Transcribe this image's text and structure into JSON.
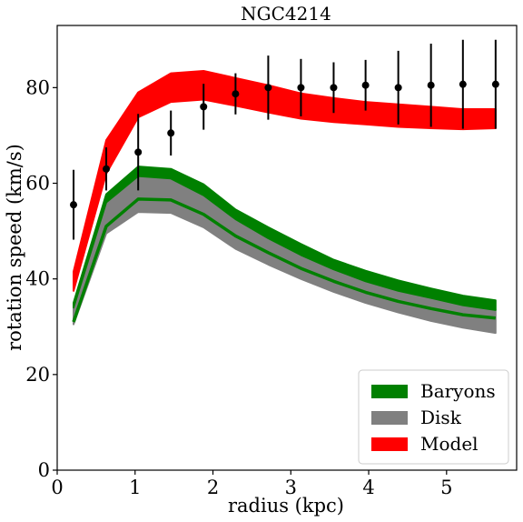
{
  "chart_data": {
    "type": "line",
    "title": "NGC4214",
    "xlabel": "radius (kpc)",
    "ylabel": "rotation speed (km/s)",
    "xlim": [
      0,
      5.9
    ],
    "ylim": [
      0,
      93
    ],
    "xticks": [
      0,
      1,
      2,
      3,
      4,
      5
    ],
    "yticks": [
      0,
      20,
      40,
      60,
      80
    ],
    "grid": false,
    "legend_position": "bottom-right",
    "x": [
      0.21,
      0.63,
      1.04,
      1.46,
      1.88,
      2.29,
      2.71,
      3.13,
      3.55,
      3.96,
      4.38,
      4.8,
      5.21,
      5.63
    ],
    "bands": [
      {
        "name": "Baryons",
        "color": "#008000",
        "lower": [
          34.0,
          56.0,
          61.5,
          61.0,
          57.5,
          52.5,
          48.5,
          45.0,
          42.0,
          39.5,
          37.5,
          36.0,
          34.5,
          33.5
        ],
        "upper": [
          35.0,
          57.7,
          63.5,
          63.0,
          59.8,
          54.5,
          50.8,
          47.3,
          44.0,
          41.7,
          39.7,
          38.0,
          36.5,
          35.5
        ]
      },
      {
        "name": "Disk",
        "color": "#808080",
        "lower": [
          30.5,
          49.5,
          54.0,
          53.8,
          50.8,
          46.3,
          43.0,
          40.0,
          37.3,
          35.0,
          33.0,
          31.2,
          29.8,
          28.7
        ],
        "upper": [
          34.5,
          56.0,
          61.5,
          61.0,
          57.5,
          52.5,
          48.5,
          45.0,
          42.0,
          39.5,
          37.5,
          36.0,
          34.5,
          33.5
        ]
      },
      {
        "name": "Model",
        "color": "#ff0000",
        "lower": [
          37.5,
          62.0,
          73.8,
          77.0,
          77.5,
          76.2,
          74.8,
          73.5,
          72.8,
          72.3,
          71.8,
          71.5,
          71.3,
          71.5
        ],
        "upper": [
          41.5,
          69.0,
          79.0,
          83.0,
          83.5,
          82.0,
          80.5,
          78.8,
          77.8,
          77.0,
          76.5,
          76.0,
          75.5,
          75.5
        ]
      }
    ],
    "lines": [
      {
        "color": "#008000",
        "values": [
          31.0,
          51.0,
          56.7,
          56.5,
          53.5,
          49.0,
          45.5,
          42.2,
          39.5,
          37.2,
          35.3,
          33.8,
          32.5,
          31.8
        ]
      }
    ],
    "observations": {
      "color": "#000000",
      "x": [
        0.21,
        0.63,
        1.04,
        1.46,
        1.88,
        2.29,
        2.71,
        3.13,
        3.55,
        3.96,
        4.38,
        4.8,
        5.21,
        5.63
      ],
      "y": [
        55.5,
        63.0,
        66.5,
        70.5,
        76.0,
        78.7,
        80.0,
        80.0,
        80.0,
        80.5,
        80.0,
        80.5,
        80.7,
        80.7
      ],
      "err": [
        7.3,
        4.5,
        8.0,
        4.7,
        4.8,
        4.3,
        6.7,
        6.0,
        5.3,
        5.3,
        7.7,
        8.7,
        9.3,
        9.3
      ]
    },
    "legend": [
      "Baryons",
      "Disk",
      "Model"
    ]
  }
}
